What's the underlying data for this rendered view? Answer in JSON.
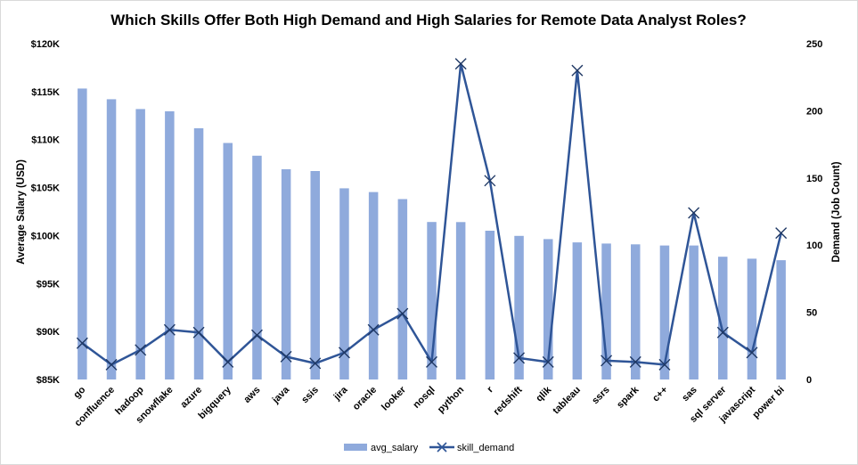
{
  "chart_data": {
    "type": "bar+line",
    "title": "Which Skills Offer Both High Demand and High Salaries for Remote Data Analyst Roles?",
    "categories": [
      "go",
      "confluence",
      "hadoop",
      "snowflake",
      "azure",
      "bigquery",
      "aws",
      "java",
      "ssis",
      "jira",
      "oracle",
      "looker",
      "nosql",
      "python",
      "r",
      "redshift",
      "qlik",
      "tableau",
      "ssrs",
      "spark",
      "c++",
      "sas",
      "sql server",
      "javascript",
      "power bi"
    ],
    "series": [
      {
        "name": "avg_salary",
        "type": "bar",
        "axis": "left",
        "color": "#8faadc",
        "values": [
          115320,
          114210,
          113190,
          112950,
          111180,
          109650,
          108320,
          106910,
          106720,
          104920,
          104530,
          103800,
          101410,
          101400,
          100500,
          99970,
          99630,
          99290,
          99170,
          99080,
          98960,
          98960,
          97790,
          97590,
          97430
        ]
      },
      {
        "name": "skill_demand",
        "type": "line",
        "axis": "right",
        "color": "#2f5597",
        "marker": "x",
        "values": [
          27,
          11,
          22,
          37,
          35,
          13,
          33,
          17,
          12,
          20,
          37,
          49,
          13,
          235,
          148,
          16,
          13,
          230,
          14,
          13,
          11,
          124,
          35,
          20,
          109
        ]
      }
    ],
    "ylabel": "Average Salary (USD)",
    "y2label": "Demand (Job Count)",
    "ylim": [
      85000,
      120000
    ],
    "y2lim": [
      0,
      250
    ],
    "yticks": [
      "$85K",
      "$90K",
      "$95K",
      "$100K",
      "$105K",
      "$110K",
      "$115K",
      "$120K"
    ],
    "y2ticks": [
      "0",
      "50",
      "100",
      "150",
      "200",
      "250"
    ],
    "grid": false,
    "legend": "bottom"
  }
}
